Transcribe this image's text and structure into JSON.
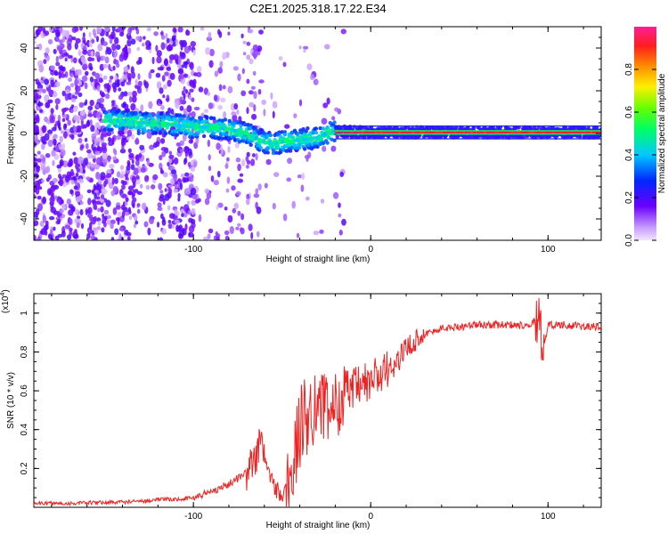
{
  "title": "C2E1.2025.318.17.22.E34",
  "chart_data": [
    {
      "type": "heatmap",
      "name": "spectrogram",
      "xlabel": "Height of straight line (km)",
      "ylabel": "Frequency (Hz)",
      "xlim": [
        -190,
        130
      ],
      "ylim": [
        -50,
        50
      ],
      "xticks": [
        -100,
        0,
        100
      ],
      "yticks": [
        -40,
        -20,
        0,
        20,
        40
      ],
      "xtick_labels": [
        "-100",
        "0",
        "100"
      ],
      "ytick_labels": [
        "-40",
        "-20",
        "0",
        "20",
        "40"
      ],
      "colorbar": {
        "label": "Normalized spectral amplitude",
        "range": [
          0,
          1
        ],
        "ticks": [
          0.0,
          0.2,
          0.4,
          0.6,
          0.8
        ],
        "tick_labels": [
          "0.0",
          "0.2",
          "0.4",
          "0.6",
          "0.8"
        ]
      },
      "ridge": {
        "description": "peak frequency track",
        "points": [
          [
            -140,
            6
          ],
          [
            -130,
            5
          ],
          [
            -120,
            5
          ],
          [
            -110,
            4
          ],
          [
            -100,
            3
          ],
          [
            -90,
            3
          ],
          [
            -80,
            2
          ],
          [
            -70,
            0
          ],
          [
            -60,
            -4
          ],
          [
            -55,
            -5
          ],
          [
            -50,
            -4
          ],
          [
            -40,
            -3
          ],
          [
            -30,
            -2
          ],
          [
            -25,
            0
          ],
          [
            -20,
            1
          ],
          [
            0,
            0.5
          ],
          [
            50,
            0.5
          ],
          [
            100,
            0.5
          ],
          [
            130,
            0.5
          ]
        ]
      }
    },
    {
      "type": "line",
      "name": "snr",
      "xlabel": "Height of straight line (km)",
      "ylabel": "SNR (10 * v/v)",
      "scale_label": "(x10",
      "scale_exp": "4",
      "scale_close": ")",
      "xlim": [
        -190,
        130
      ],
      "ylim": [
        0,
        1.1
      ],
      "xticks": [
        -100,
        0,
        100
      ],
      "yticks": [
        0.2,
        0.4,
        0.6,
        0.8,
        1.0
      ],
      "xtick_labels": [
        "-100",
        "0",
        "100"
      ],
      "ytick_labels": [
        "0.2",
        "0.4",
        "0.6",
        "0.8",
        "1"
      ],
      "series": [
        {
          "name": "SNR",
          "color": "#ee2222",
          "x": [
            -190,
            -170,
            -150,
            -130,
            -120,
            -110,
            -100,
            -90,
            -80,
            -70,
            -65,
            -62,
            -60,
            -55,
            -50,
            -45,
            -42,
            -40,
            -35,
            -30,
            -25,
            -20,
            -15,
            -10,
            -5,
            0,
            5,
            10,
            15,
            20,
            25,
            30,
            40,
            50,
            60,
            70,
            80,
            90,
            95,
            97,
            100,
            110,
            120,
            130
          ],
          "y": [
            0.02,
            0.02,
            0.025,
            0.03,
            0.04,
            0.04,
            0.05,
            0.08,
            0.12,
            0.18,
            0.25,
            0.35,
            0.25,
            0.12,
            0.05,
            0.15,
            0.3,
            0.4,
            0.5,
            0.55,
            0.5,
            0.52,
            0.6,
            0.6,
            0.62,
            0.65,
            0.68,
            0.7,
            0.75,
            0.82,
            0.86,
            0.89,
            0.92,
            0.93,
            0.94,
            0.94,
            0.94,
            0.94,
            0.98,
            0.8,
            0.94,
            0.94,
            0.93,
            0.93
          ]
        }
      ]
    }
  ]
}
